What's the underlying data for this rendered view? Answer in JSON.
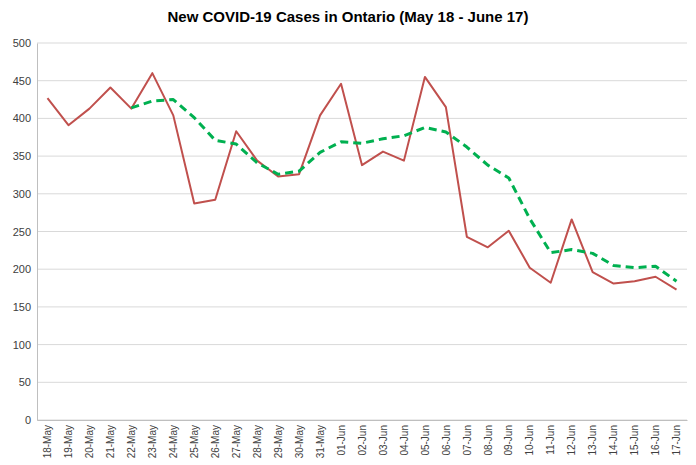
{
  "chart_data": {
    "type": "line",
    "title": "New COVID-19 Cases in Ontario (May 18 - June 17)",
    "categories": [
      "18-May",
      "19-May",
      "20-May",
      "21-May",
      "22-May",
      "23-May",
      "24-May",
      "25-May",
      "26-May",
      "27-May",
      "28-May",
      "29-May",
      "30-May",
      "31-May",
      "01-Jun",
      "02-Jun",
      "03-Jun",
      "04-Jun",
      "05-Jun",
      "06-Jun",
      "07-Jun",
      "08-Jun",
      "09-Jun",
      "10-Jun",
      "11-Jun",
      "12-Jun",
      "13-Jun",
      "14-Jun",
      "15-Jun",
      "16-Jun",
      "17-Jun"
    ],
    "series": [
      {
        "color": "#c0504d",
        "line_style": "solid",
        "values": [
          427,
          391,
          413,
          441,
          413,
          460,
          404,
          287,
          292,
          383,
          344,
          323,
          326,
          404,
          446,
          338,
          356,
          344,
          455,
          415,
          243,
          229,
          251,
          202,
          182,
          266,
          196,
          181,
          184,
          190,
          173
        ]
      },
      {
        "color": "#00b050",
        "line_style": "dashed",
        "values": [
          null,
          null,
          null,
          null,
          414,
          423,
          425,
          401,
          371,
          366,
          341,
          326,
          330,
          355,
          369,
          367,
          373,
          377,
          388,
          382,
          362,
          338,
          321,
          267,
          222,
          226,
          221,
          205,
          202,
          204,
          184
        ]
      }
    ],
    "ylim": [
      0,
      500
    ],
    "yticks": [
      0,
      50,
      100,
      150,
      200,
      250,
      300,
      350,
      400,
      450,
      500
    ],
    "grid": true
  }
}
